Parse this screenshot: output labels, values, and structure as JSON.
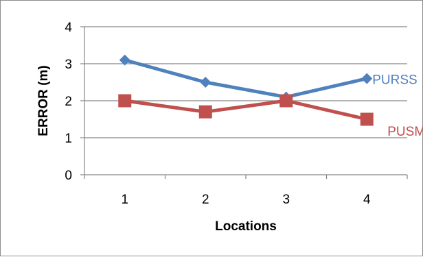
{
  "chart_data": {
    "type": "line",
    "title": "",
    "xlabel": "Locations",
    "ylabel": "ERROR (m)",
    "categories": [
      "1",
      "2",
      "3",
      "4"
    ],
    "ylim": [
      0,
      4
    ],
    "yticks": [
      "0",
      "1",
      "2",
      "3",
      "4"
    ],
    "grid": true,
    "legend": "inline-right",
    "series": [
      {
        "name": "PURSS",
        "values": [
          3.1,
          2.5,
          2.1,
          2.6
        ],
        "color": "#4f81bd",
        "marker": "diamond"
      },
      {
        "name": "PUSM",
        "values": [
          2.0,
          1.7,
          2.0,
          1.5
        ],
        "color": "#c0504d",
        "marker": "square"
      }
    ]
  }
}
